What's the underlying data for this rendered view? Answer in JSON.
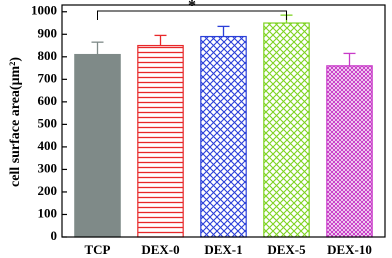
{
  "chart_data": {
    "type": "bar",
    "ylabel": "cell surface area(μm²)",
    "categories": [
      "TCP",
      "DEX-0",
      "DEX-1",
      "DEX-5",
      "DEX-10"
    ],
    "values": [
      810,
      850,
      890,
      950,
      760
    ],
    "errors": [
      55,
      45,
      45,
      35,
      55
    ],
    "colors": [
      "#7f8a88",
      "#e8282a",
      "#2a3fd8",
      "#7ed321",
      "#c83ac8"
    ],
    "patterns": [
      "solid",
      "hlines",
      "crosshatch",
      "crosshatch",
      "fine-crosshatch"
    ],
    "ylim": [
      0,
      1030
    ],
    "yticks": [
      0,
      100,
      200,
      300,
      400,
      500,
      600,
      700,
      800,
      900,
      1000
    ],
    "annotation": "*"
  }
}
